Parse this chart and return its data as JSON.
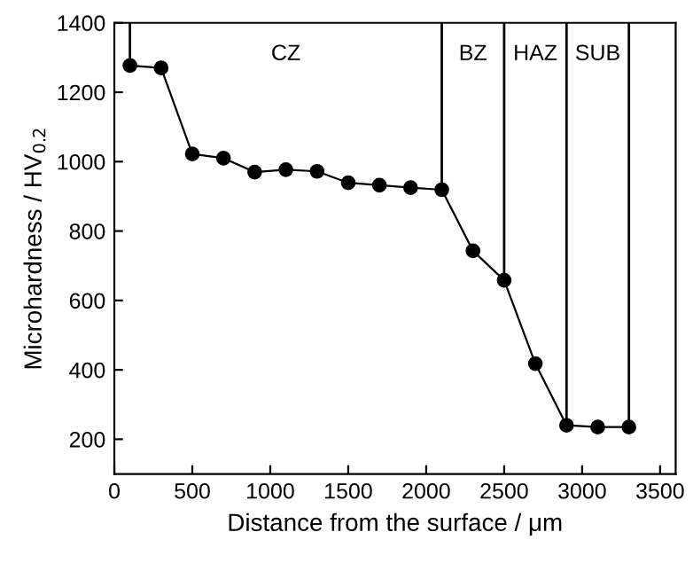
{
  "chart_data": {
    "type": "line",
    "xlabel": "Distance from the surface / μm",
    "ylabel": "Microhardness / HV$_{0.2}$",
    "x": [
      100,
      300,
      500,
      700,
      900,
      1100,
      1300,
      1500,
      1700,
      1900,
      2100,
      2300,
      2500,
      2700,
      2900,
      3100,
      3300
    ],
    "series": [
      {
        "color": "#000000",
        "values": [
          1277,
          1270,
          1022,
          1010,
          970,
          977,
          972,
          939,
          932,
          925,
          919,
          743,
          658,
          418,
          240,
          235,
          235
        ]
      }
    ],
    "xlim": [
      0,
      3600
    ],
    "xticks": [
      0,
      500,
      1000,
      1500,
      2000,
      2500,
      3000,
      3500
    ],
    "ylim": [
      100,
      1400
    ],
    "yticks": [
      200,
      400,
      600,
      800,
      1000,
      1200,
      1400
    ],
    "marker": "circle",
    "line_style": "solid",
    "grid": false,
    "legend": false,
    "ref_lines": [
      {
        "axis": "x",
        "value": 100,
        "color": "#000000"
      },
      {
        "axis": "x",
        "value": 2100,
        "color": "#000000"
      },
      {
        "axis": "x",
        "value": 2500,
        "color": "#000000"
      },
      {
        "axis": "x",
        "value": 2900,
        "color": "#000000"
      },
      {
        "axis": "x",
        "value": 3300,
        "color": "#000000"
      }
    ],
    "annotations": [
      "CZ",
      "BZ",
      "HAZ",
      "SUB"
    ]
  }
}
